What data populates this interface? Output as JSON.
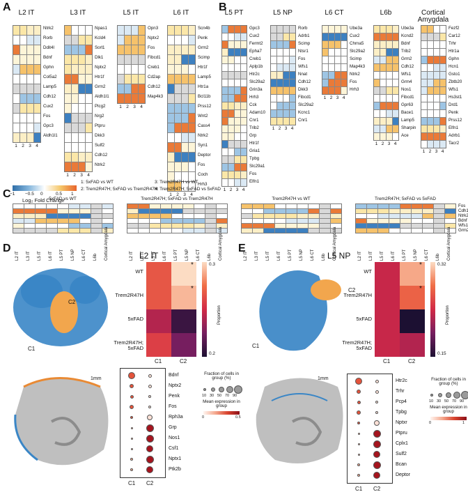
{
  "panels": {
    "A": "A",
    "B": "B",
    "C": "C",
    "D": "D",
    "E": "E"
  },
  "panelA": {
    "cols": [
      "1",
      "2",
      "3",
      "4"
    ],
    "groups": [
      {
        "title": "L2 IT",
        "genes": [
          "Ntrk2",
          "Rorb",
          "Ddit4l",
          "Bdnf",
          "Gphn",
          "Col5a2",
          "Lamp5",
          "Cdh12",
          "Cux2",
          "Fos",
          "Gpc3",
          "Aldh1l1"
        ]
      },
      {
        "title": "L3 IT",
        "genes": [
          "Npas1",
          "Kcld4",
          "Sorl1",
          "Dlk1",
          "Nptx2",
          "Htr1f",
          "Grm2",
          "Aldh1l1",
          "Plcg2",
          "Nrg2",
          "Ptpru",
          "Dkk3",
          "Sulf2",
          "Cdh12",
          "Ntrk2"
        ]
      },
      {
        "title": "L5 IT",
        "genes": [
          "Opn3",
          "Nptx2",
          "Fos",
          "Fibcd1",
          "Creb1",
          "Cd2ap",
          "Cdh12",
          "Map4k3"
        ]
      },
      {
        "title": "L6 IT",
        "genes": [
          "Scn4b",
          "Penk",
          "Grm2",
          "Scimp",
          "Htr1f",
          "Lamp5",
          "Htr1a",
          "Bcl11b",
          "Prss12",
          "Wnt2",
          "Cass4",
          "Ntrk2",
          "Syn1",
          "Deptor",
          "Fos",
          "Coch",
          "Hrh3"
        ]
      }
    ],
    "colorbar": {
      "label": "Log₂ Fold Change",
      "ticks": [
        "−1",
        "−0.5",
        "0",
        "0.5",
        "1"
      ]
    }
  },
  "legend": [
    "1: 5xFAD vs WT",
    "2: Trem2R47H; 5xFAD vs Trem2R47H",
    "3: Trem2R47H vs WT",
    "4: Trem2R47H; 5xFAD vs 5xFAD"
  ],
  "panelB": {
    "groups": [
      {
        "title": "L5 PT",
        "genes": [
          "Gpc3",
          "Cux2",
          "Fermt2",
          "Epha7",
          "Creb1",
          "Aplp1b",
          "Htr2c",
          "Slc29a2",
          "Grin3a",
          "Hrh3",
          "Cck",
          "Adam10",
          "Cnr1",
          "Trib2",
          "Grp",
          "Htr1f",
          "Gria1",
          "Tpbg",
          "Slc29a1",
          "Fos",
          "Elfn1"
        ]
      },
      {
        "title": "L5 NP",
        "genes": [
          "Rorb",
          "Adrb1",
          "Scimp",
          "Ntsr1",
          "Fos",
          "Wfs1",
          "Nnat",
          "Cdh12",
          "Dkk3",
          "Fibcd1",
          "Slc29a2",
          "Kcnc1",
          "Cnr1"
        ]
      },
      {
        "title": "L6 CT",
        "genes": [
          "Ube3a",
          "Cux2",
          "Chrna5",
          "Slc29a2",
          "Scimp",
          "Map4k3",
          "Ntrk2",
          "Fos",
          "Hrh3"
        ]
      },
      {
        "title": "L6b",
        "genes": [
          "Ube3a",
          "Kcnd2",
          "Bdnf",
          "Trib2",
          "Grm2",
          "Cdh12",
          "Wfs1",
          "Grm4",
          "Nos1",
          "Fibcd1",
          "Gpr63",
          "Bace1",
          "Lamp5",
          "Sharpin",
          "Ace"
        ]
      },
      {
        "title": "Cortical Amygdala",
        "genes": [
          "Fezf2",
          "Car12",
          "Trhr",
          "Htr1a",
          "Gphn",
          "Hcn1",
          "Gsto1",
          "Zbtb20",
          "Wfs1",
          "Hs3st1",
          "Drd1",
          "Penk",
          "Prss12",
          "Elfn1",
          "Adrb1",
          "Tacr2"
        ]
      }
    ]
  },
  "panelC": {
    "titles": [
      "5xFAD vs WT",
      "Trem2R47H; 5xFAD vs Trem2R47H",
      "Trem2R47H vs WT",
      "Trem2R47H; 5xFAD vs 5xFAD"
    ],
    "celltypes": [
      "L2 IT",
      "L3 IT",
      "L5 IT",
      "L6 IT",
      "L5 PT",
      "L5 NP",
      "L6 CT",
      "L6b",
      "Cortical Amygdala"
    ],
    "genes": [
      "Fos",
      "Cdh12",
      "Ntrk2",
      "Bdnf",
      "Wfs1",
      "Grm2"
    ]
  },
  "panelD": {
    "title": "L2 IT",
    "clusters": [
      "C1",
      "C2"
    ],
    "rows": [
      "WT",
      "Trem2R47H",
      "5xFAD",
      "Trem2R47H; 5xFAD"
    ],
    "cbar_label": "Proportion",
    "cbar_ticks": [
      "0.3",
      "0.2"
    ],
    "values": [
      [
        0.26,
        0.3
      ],
      [
        0.26,
        0.29
      ],
      [
        0.23,
        0.19
      ],
      [
        0.25,
        0.21
      ]
    ],
    "star": "*",
    "scale": "1mm",
    "dot_genes": [
      "Bdnf",
      "Nptx2",
      "Penk",
      "Fos",
      "Rph3a",
      "Grp",
      "Nos1",
      "Csf1",
      "Nptx1",
      "Ptk2b"
    ],
    "dot_legend": {
      "frac": "Fraction of cells in group (%)",
      "frac_ticks": [
        "10",
        "30",
        "50",
        "70",
        "90"
      ],
      "mean": "Mean expression in group",
      "mean_ticks": [
        "0",
        "0.5"
      ]
    }
  },
  "panelE": {
    "title": "L5 NP",
    "clusters": [
      "C1",
      "C2"
    ],
    "rows": [
      "WT",
      "Trem2R47H",
      "5xFAD",
      "Trem2R47H; 5xFAD"
    ],
    "cbar_label": "Proportion",
    "cbar_ticks": [
      "0.32",
      "0.15"
    ],
    "values": [
      [
        0.23,
        0.3
      ],
      [
        0.23,
        0.27
      ],
      [
        0.23,
        0.15
      ],
      [
        0.23,
        0.22
      ]
    ],
    "star": "*",
    "scale": "1mm",
    "dot_genes": [
      "Htr2c",
      "Trhr",
      "Pcp4",
      "Tpbg",
      "Nptxr",
      "Ptpru",
      "Cplx1",
      "Sulf2",
      "Bcan",
      "Deptor"
    ],
    "dot_legend": {
      "frac": "Fraction of cells in group (%)",
      "frac_ticks": [
        "10",
        "30",
        "50",
        "70",
        "90"
      ],
      "mean": "Mean expression in group",
      "mean_ticks": [
        "0",
        "1"
      ]
    }
  }
}
